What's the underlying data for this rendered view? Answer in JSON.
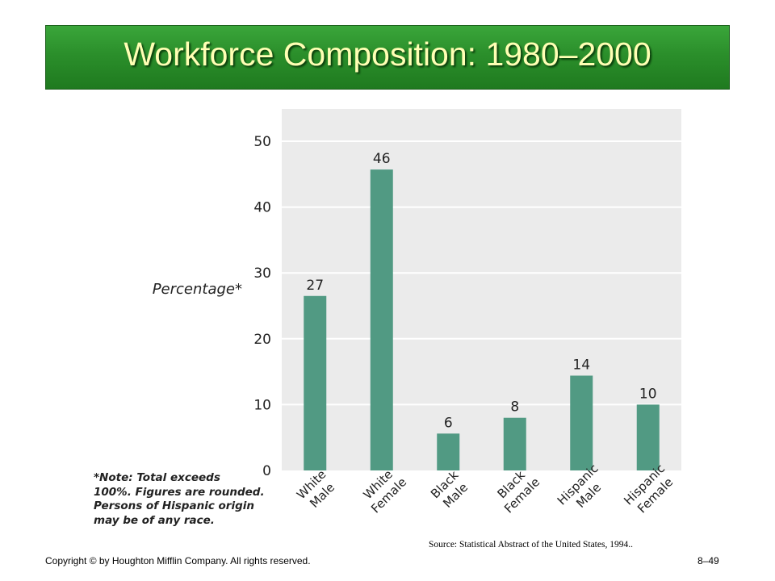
{
  "slide": {
    "title": "Workforce Composition: 1980–2000",
    "note_lines": [
      "*Note: Total exceeds",
      "100%. Figures are rounded.",
      "Persons of Hispanic origin",
      "may be of any race."
    ],
    "source": "Source: Statistical Abstract of the United States, 1994..",
    "copyright": "Copyright © by Houghton Mifflin Company. All rights reserved.",
    "page_number": "8–49"
  },
  "colors": {
    "title_bar": "#2b8f2b",
    "title_text": "#ffffb4",
    "bar": "#519a83",
    "plot_bg": "#ebebeb"
  },
  "chart_data": {
    "type": "bar",
    "ylabel": "Percentage*",
    "xlabel": "",
    "ylim": [
      0,
      55
    ],
    "yticks": [
      0,
      10,
      20,
      30,
      40,
      50
    ],
    "grid": true,
    "categories": [
      [
        "White",
        "Male"
      ],
      [
        "White",
        "Female"
      ],
      [
        "Black",
        "Male"
      ],
      [
        "Black",
        "Female"
      ],
      [
        "Hispanic",
        "Male"
      ],
      [
        "Hispanic",
        "Female"
      ]
    ],
    "values": [
      26.5,
      45.7,
      5.6,
      8,
      14.4,
      10
    ],
    "data_labels": [
      "27",
      "46",
      "6",
      "8",
      "14",
      "10"
    ]
  }
}
